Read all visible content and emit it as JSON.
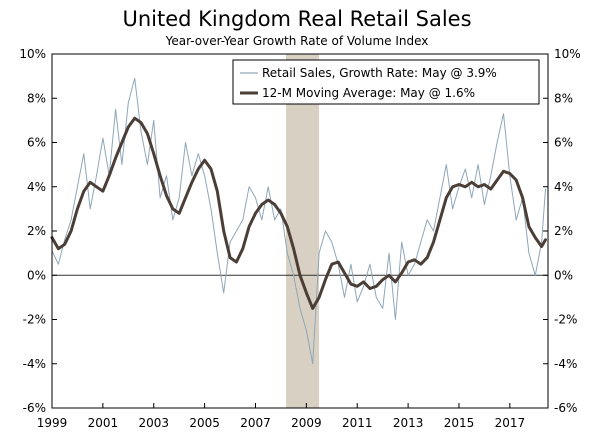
{
  "chart_data": {
    "type": "line",
    "title": "United Kingdom Real Retail Sales",
    "subtitle": "Year-over-Year Growth Rate of Volume Index",
    "xlabel": "",
    "ylabel": "",
    "x_ticks": [
      "1999",
      "2001",
      "2003",
      "2005",
      "2007",
      "2009",
      "2011",
      "2013",
      "2015",
      "2017"
    ],
    "y_ticks_left": [
      "10%",
      "8%",
      "6%",
      "4%",
      "2%",
      "0%",
      "-2%",
      "-4%",
      "-6%"
    ],
    "y_ticks_right": [
      "10%",
      "8%",
      "6%",
      "4%",
      "2%",
      "0%",
      "-2%",
      "-4%",
      "-6%"
    ],
    "xlim": [
      1999.0,
      2018.5
    ],
    "ylim": [
      -6,
      10
    ],
    "grid": false,
    "legend_position": "top-right",
    "recession_shading": {
      "start": 2008.2,
      "end": 2009.5
    },
    "colors": {
      "growth_rate": "#8fa6b8",
      "moving_average": "#4a3e36",
      "recession": "#d8d1c3",
      "axis": "#000000"
    },
    "series": [
      {
        "name": "Retail Sales, Growth Rate: May @ 3.9%",
        "style": "thin",
        "points": [
          [
            1999.0,
            1.1
          ],
          [
            1999.25,
            0.5
          ],
          [
            1999.5,
            1.6
          ],
          [
            1999.75,
            2.5
          ],
          [
            2000.0,
            4.0
          ],
          [
            2000.25,
            5.5
          ],
          [
            2000.5,
            3.0
          ],
          [
            2000.75,
            4.5
          ],
          [
            2001.0,
            6.2
          ],
          [
            2001.25,
            4.5
          ],
          [
            2001.5,
            7.5
          ],
          [
            2001.75,
            5.0
          ],
          [
            2002.0,
            7.8
          ],
          [
            2002.25,
            8.9
          ],
          [
            2002.5,
            6.5
          ],
          [
            2002.75,
            5.0
          ],
          [
            2003.0,
            7.0
          ],
          [
            2003.25,
            3.5
          ],
          [
            2003.5,
            4.5
          ],
          [
            2003.75,
            2.5
          ],
          [
            2004.0,
            3.5
          ],
          [
            2004.25,
            6.0
          ],
          [
            2004.5,
            4.5
          ],
          [
            2004.75,
            5.5
          ],
          [
            2005.0,
            4.5
          ],
          [
            2005.25,
            3.0
          ],
          [
            2005.5,
            1.0
          ],
          [
            2005.75,
            -0.8
          ],
          [
            2006.0,
            1.5
          ],
          [
            2006.25,
            2.0
          ],
          [
            2006.5,
            2.5
          ],
          [
            2006.75,
            4.0
          ],
          [
            2007.0,
            3.5
          ],
          [
            2007.25,
            2.5
          ],
          [
            2007.5,
            4.0
          ],
          [
            2007.75,
            2.5
          ],
          [
            2008.0,
            3.0
          ],
          [
            2008.25,
            1.0
          ],
          [
            2008.5,
            0.0
          ],
          [
            2008.75,
            -1.5
          ],
          [
            2009.0,
            -2.5
          ],
          [
            2009.25,
            -4.0
          ],
          [
            2009.5,
            1.0
          ],
          [
            2009.75,
            2.0
          ],
          [
            2010.0,
            1.5
          ],
          [
            2010.25,
            0.5
          ],
          [
            2010.5,
            -1.0
          ],
          [
            2010.75,
            0.5
          ],
          [
            2011.0,
            -1.2
          ],
          [
            2011.25,
            -0.5
          ],
          [
            2011.5,
            0.5
          ],
          [
            2011.75,
            -1.0
          ],
          [
            2012.0,
            -1.5
          ],
          [
            2012.25,
            1.0
          ],
          [
            2012.5,
            -2.0
          ],
          [
            2012.75,
            1.5
          ],
          [
            2013.0,
            0.0
          ],
          [
            2013.25,
            0.5
          ],
          [
            2013.5,
            1.5
          ],
          [
            2013.75,
            2.5
          ],
          [
            2014.0,
            2.0
          ],
          [
            2014.25,
            3.5
          ],
          [
            2014.5,
            5.0
          ],
          [
            2014.75,
            3.0
          ],
          [
            2015.0,
            4.0
          ],
          [
            2015.25,
            4.8
          ],
          [
            2015.5,
            3.5
          ],
          [
            2015.75,
            5.0
          ],
          [
            2016.0,
            3.2
          ],
          [
            2016.25,
            4.5
          ],
          [
            2016.5,
            6.0
          ],
          [
            2016.75,
            7.3
          ],
          [
            2017.0,
            4.5
          ],
          [
            2017.25,
            2.5
          ],
          [
            2017.5,
            3.5
          ],
          [
            2017.75,
            1.0
          ],
          [
            2018.0,
            0.0
          ],
          [
            2018.25,
            1.5
          ],
          [
            2018.4,
            3.9
          ]
        ]
      },
      {
        "name": "12-M Moving Average: May @ 1.6%",
        "style": "thick",
        "points": [
          [
            1999.0,
            1.7
          ],
          [
            1999.25,
            1.2
          ],
          [
            1999.5,
            1.4
          ],
          [
            1999.75,
            2.0
          ],
          [
            2000.0,
            3.0
          ],
          [
            2000.25,
            3.8
          ],
          [
            2000.5,
            4.2
          ],
          [
            2000.75,
            4.0
          ],
          [
            2001.0,
            3.8
          ],
          [
            2001.25,
            4.5
          ],
          [
            2001.5,
            5.3
          ],
          [
            2001.75,
            6.0
          ],
          [
            2002.0,
            6.7
          ],
          [
            2002.25,
            7.1
          ],
          [
            2002.5,
            6.9
          ],
          [
            2002.75,
            6.4
          ],
          [
            2003.0,
            5.5
          ],
          [
            2003.25,
            4.5
          ],
          [
            2003.5,
            3.6
          ],
          [
            2003.75,
            3.0
          ],
          [
            2004.0,
            2.8
          ],
          [
            2004.25,
            3.5
          ],
          [
            2004.5,
            4.2
          ],
          [
            2004.75,
            4.8
          ],
          [
            2005.0,
            5.2
          ],
          [
            2005.25,
            4.8
          ],
          [
            2005.5,
            3.8
          ],
          [
            2005.75,
            2.0
          ],
          [
            2006.0,
            0.8
          ],
          [
            2006.25,
            0.6
          ],
          [
            2006.5,
            1.2
          ],
          [
            2006.75,
            2.2
          ],
          [
            2007.0,
            2.8
          ],
          [
            2007.25,
            3.2
          ],
          [
            2007.5,
            3.4
          ],
          [
            2007.75,
            3.2
          ],
          [
            2008.0,
            2.8
          ],
          [
            2008.25,
            2.2
          ],
          [
            2008.5,
            1.2
          ],
          [
            2008.75,
            0.0
          ],
          [
            2009.0,
            -0.8
          ],
          [
            2009.25,
            -1.5
          ],
          [
            2009.5,
            -1.0
          ],
          [
            2009.75,
            -0.2
          ],
          [
            2010.0,
            0.5
          ],
          [
            2010.25,
            0.6
          ],
          [
            2010.5,
            0.1
          ],
          [
            2010.75,
            -0.4
          ],
          [
            2011.0,
            -0.5
          ],
          [
            2011.25,
            -0.3
          ],
          [
            2011.5,
            -0.6
          ],
          [
            2011.75,
            -0.5
          ],
          [
            2012.0,
            -0.2
          ],
          [
            2012.25,
            0.0
          ],
          [
            2012.5,
            -0.3
          ],
          [
            2012.75,
            0.1
          ],
          [
            2013.0,
            0.6
          ],
          [
            2013.25,
            0.7
          ],
          [
            2013.5,
            0.5
          ],
          [
            2013.75,
            0.8
          ],
          [
            2014.0,
            1.5
          ],
          [
            2014.25,
            2.5
          ],
          [
            2014.5,
            3.5
          ],
          [
            2014.75,
            4.0
          ],
          [
            2015.0,
            4.1
          ],
          [
            2015.25,
            4.0
          ],
          [
            2015.5,
            4.2
          ],
          [
            2015.75,
            4.0
          ],
          [
            2016.0,
            4.1
          ],
          [
            2016.25,
            3.9
          ],
          [
            2016.5,
            4.3
          ],
          [
            2016.75,
            4.7
          ],
          [
            2017.0,
            4.6
          ],
          [
            2017.25,
            4.3
          ],
          [
            2017.5,
            3.5
          ],
          [
            2017.75,
            2.2
          ],
          [
            2018.0,
            1.7
          ],
          [
            2018.25,
            1.3
          ],
          [
            2018.4,
            1.6
          ]
        ]
      }
    ]
  }
}
